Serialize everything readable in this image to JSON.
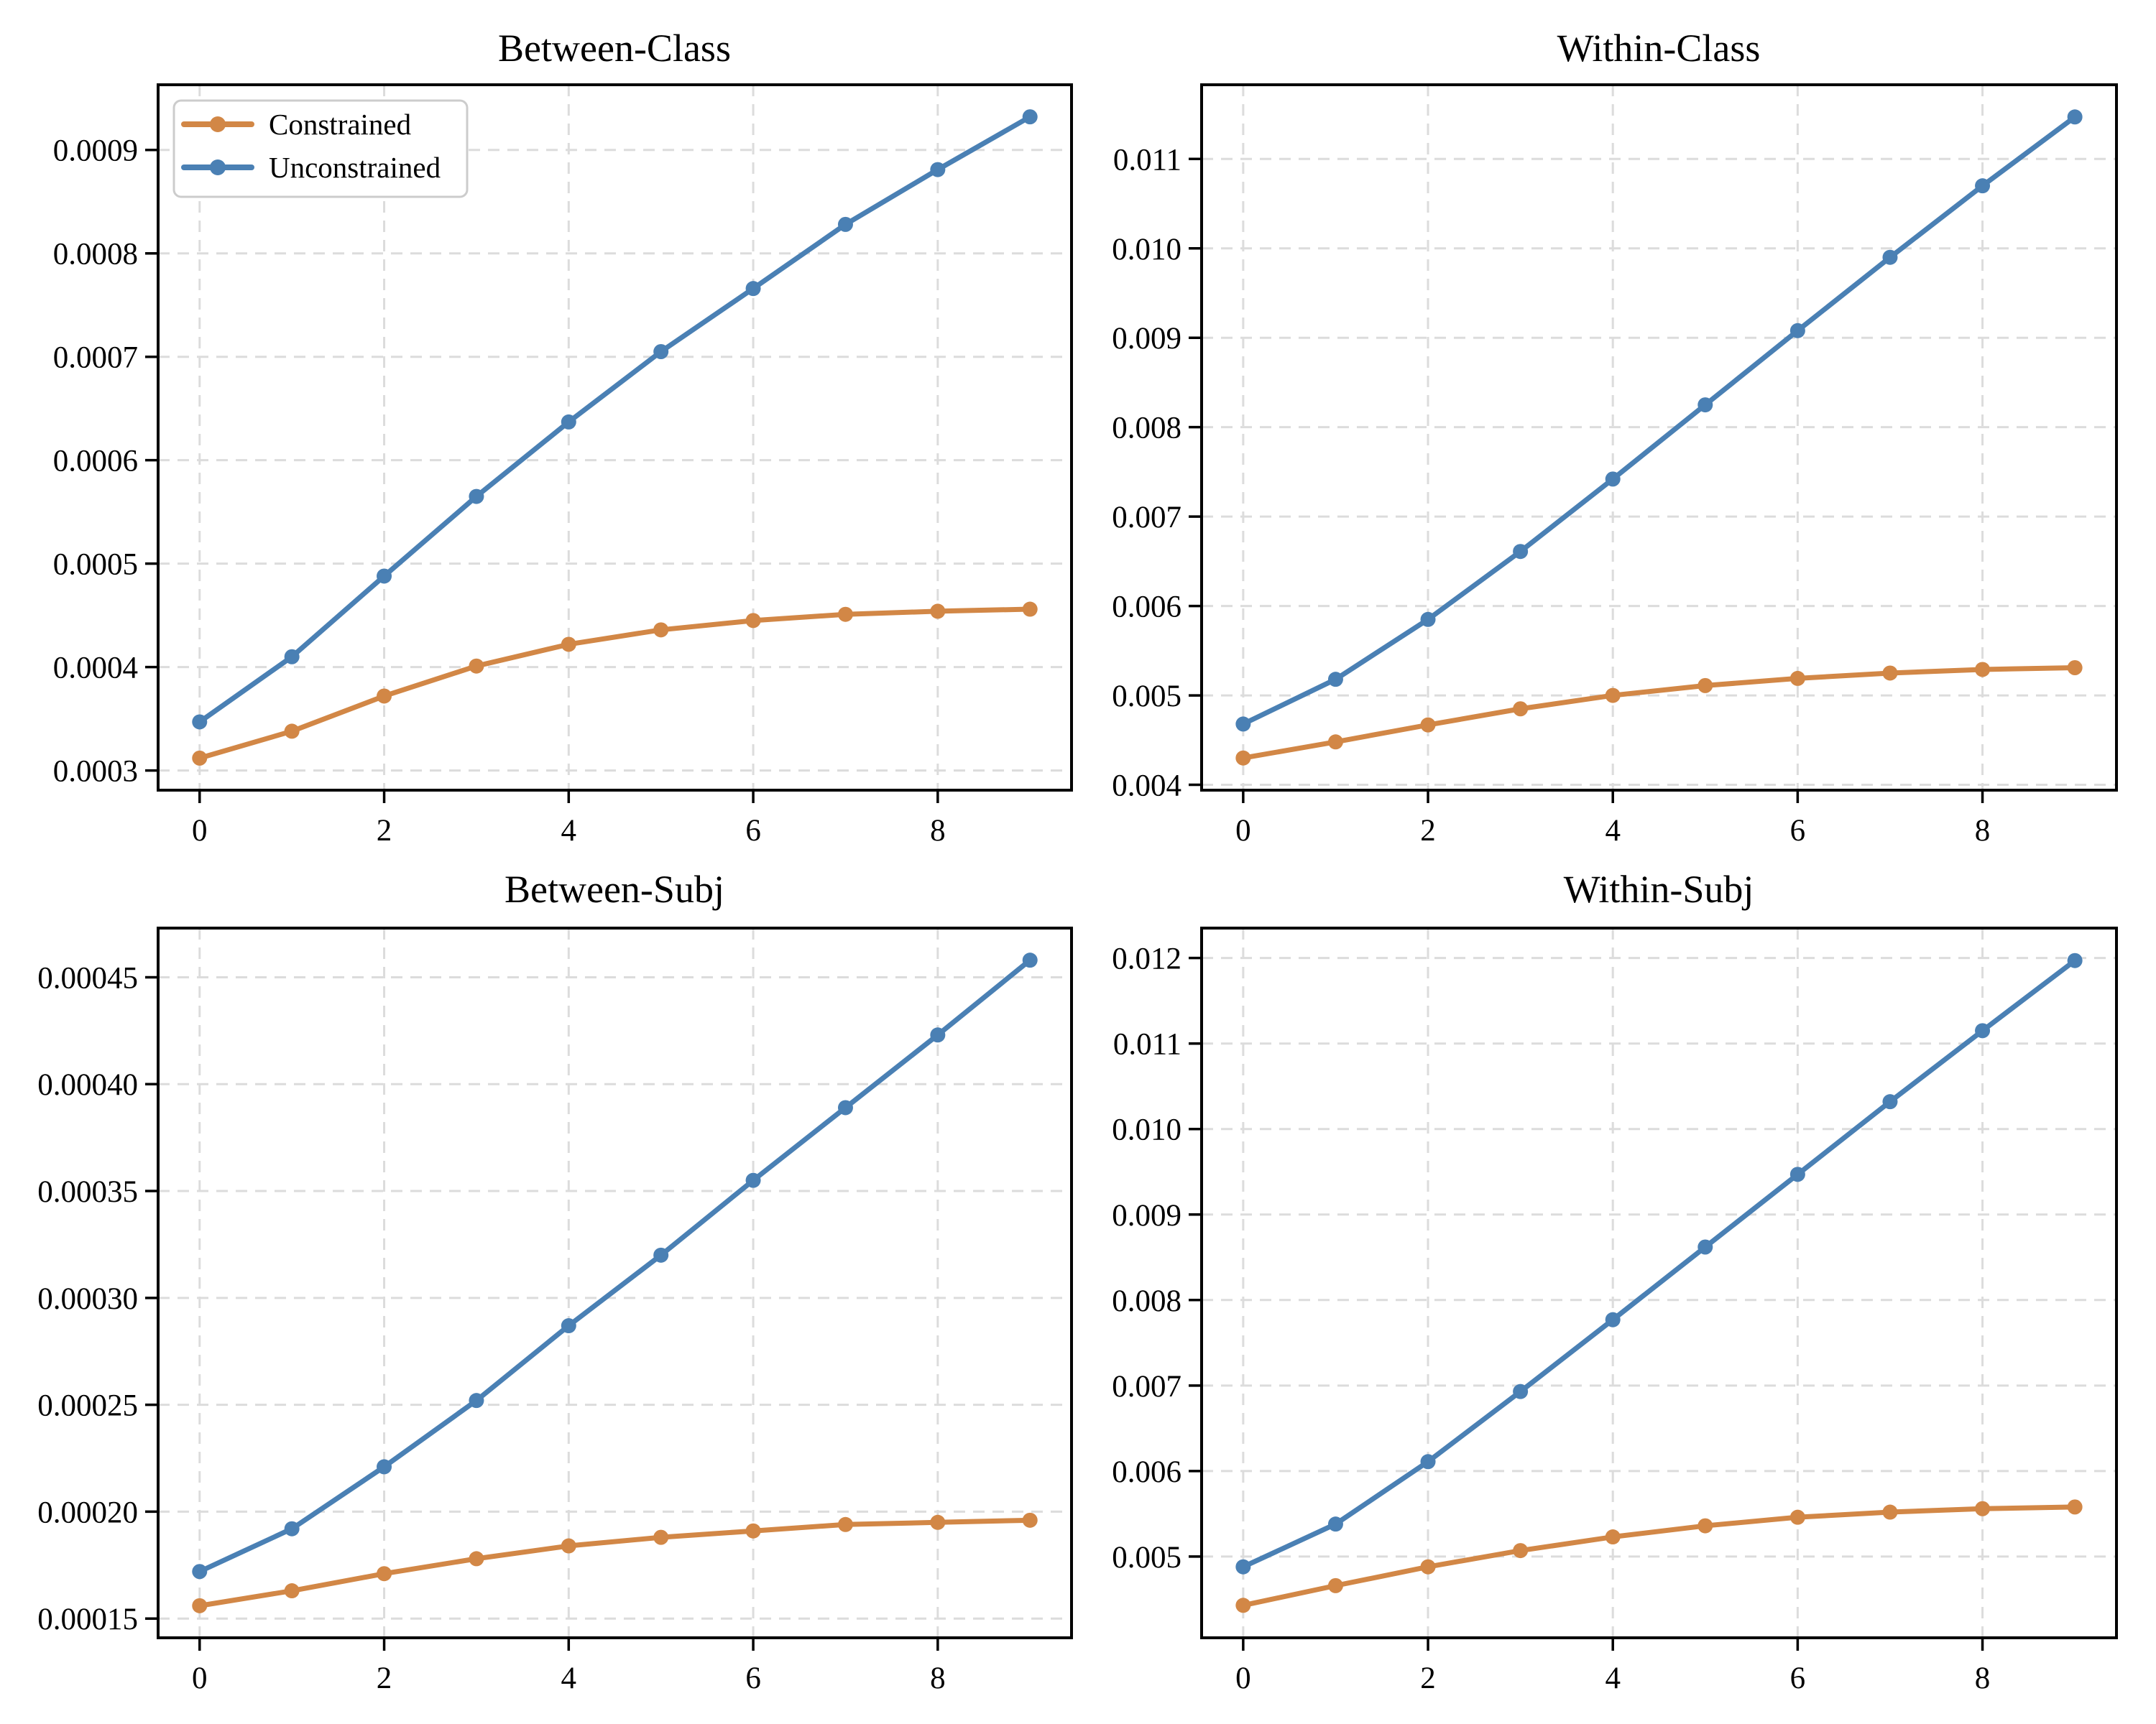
{
  "figure": {
    "background": "#ffffff",
    "spine_color": "#000000",
    "grid_color": "#dcdcdc",
    "legend_border_color": "#cccccc"
  },
  "palette": {
    "Constrained": "#D28746",
    "Unconstrained": "#4A80B4"
  },
  "legend": {
    "entries": [
      "Constrained",
      "Unconstrained"
    ]
  },
  "chart_data": [
    {
      "type": "line",
      "title": "Between-Class",
      "x": [
        0,
        1,
        2,
        3,
        4,
        5,
        6,
        7,
        8,
        9
      ],
      "xticks": [
        0,
        2,
        4,
        6,
        8
      ],
      "xtick_labels": [
        "0",
        "2",
        "4",
        "6",
        "8"
      ],
      "xlim": [
        -0.45,
        9.45
      ],
      "ytick_values": [
        0.0003,
        0.0004,
        0.0005,
        0.0006,
        0.0007,
        0.0008,
        0.0009
      ],
      "ytick_labels": [
        "0.0003",
        "0.0004",
        "0.0005",
        "0.0006",
        "0.0007",
        "0.0008",
        "0.0009"
      ],
      "ylim": [
        0.000281,
        0.000963
      ],
      "grid": true,
      "legend": true,
      "series": [
        {
          "name": "Constrained",
          "values": [
            0.000312,
            0.000338,
            0.000372,
            0.000401,
            0.000422,
            0.000436,
            0.000445,
            0.000451,
            0.000454,
            0.000456
          ]
        },
        {
          "name": "Unconstrained",
          "values": [
            0.000347,
            0.00041,
            0.000488,
            0.000565,
            0.000637,
            0.000705,
            0.000766,
            0.000828,
            0.000881,
            0.000932
          ]
        }
      ]
    },
    {
      "type": "line",
      "title": "Within-Class",
      "x": [
        0,
        1,
        2,
        3,
        4,
        5,
        6,
        7,
        8,
        9
      ],
      "xticks": [
        0,
        2,
        4,
        6,
        8
      ],
      "xtick_labels": [
        "0",
        "2",
        "4",
        "6",
        "8"
      ],
      "xlim": [
        -0.45,
        9.45
      ],
      "ytick_values": [
        0.004,
        0.005,
        0.006,
        0.007,
        0.008,
        0.009,
        0.01,
        0.011
      ],
      "ytick_labels": [
        "0.004",
        "0.005",
        "0.006",
        "0.007",
        "0.008",
        "0.009",
        "0.010",
        "0.011"
      ],
      "ylim": [
        0.00394,
        0.01183
      ],
      "grid": true,
      "legend": false,
      "series": [
        {
          "name": "Constrained",
          "values": [
            0.0043,
            0.00448,
            0.00467,
            0.00485,
            0.005,
            0.00511,
            0.00519,
            0.00525,
            0.00529,
            0.00531
          ]
        },
        {
          "name": "Unconstrained",
          "values": [
            0.00468,
            0.00518,
            0.00585,
            0.00661,
            0.00742,
            0.00825,
            0.00908,
            0.0099,
            0.0107,
            0.01147
          ]
        }
      ]
    },
    {
      "type": "line",
      "title": "Between-Subj",
      "x": [
        0,
        1,
        2,
        3,
        4,
        5,
        6,
        7,
        8,
        9
      ],
      "xticks": [
        0,
        2,
        4,
        6,
        8
      ],
      "xtick_labels": [
        "0",
        "2",
        "4",
        "6",
        "8"
      ],
      "xlim": [
        -0.45,
        9.45
      ],
      "ytick_values": [
        0.00015,
        0.0002,
        0.00025,
        0.0003,
        0.00035,
        0.0004,
        0.00045
      ],
      "ytick_labels": [
        "0.00015",
        "0.00020",
        "0.00025",
        "0.00030",
        "0.00035",
        "0.00040",
        "0.00045"
      ],
      "ylim": [
        0.000141,
        0.000473
      ],
      "grid": true,
      "legend": false,
      "series": [
        {
          "name": "Constrained",
          "values": [
            0.000156,
            0.000163,
            0.000171,
            0.000178,
            0.000184,
            0.000188,
            0.000191,
            0.000194,
            0.000195,
            0.000196
          ]
        },
        {
          "name": "Unconstrained",
          "values": [
            0.000172,
            0.000192,
            0.000221,
            0.000252,
            0.000287,
            0.00032,
            0.000355,
            0.000389,
            0.000423,
            0.000458
          ]
        }
      ]
    },
    {
      "type": "line",
      "title": "Within-Subj",
      "x": [
        0,
        1,
        2,
        3,
        4,
        5,
        6,
        7,
        8,
        9
      ],
      "xticks": [
        0,
        2,
        4,
        6,
        8
      ],
      "xtick_labels": [
        "0",
        "2",
        "4",
        "6",
        "8"
      ],
      "xlim": [
        -0.45,
        9.45
      ],
      "ytick_values": [
        0.005,
        0.006,
        0.007,
        0.008,
        0.009,
        0.01,
        0.011,
        0.012
      ],
      "ytick_labels": [
        "0.005",
        "0.006",
        "0.007",
        "0.008",
        "0.009",
        "0.010",
        "0.011",
        "0.012"
      ],
      "ylim": [
        0.00405,
        0.01235
      ],
      "grid": true,
      "legend": false,
      "series": [
        {
          "name": "Constrained",
          "values": [
            0.00443,
            0.00466,
            0.00488,
            0.00507,
            0.00523,
            0.00536,
            0.00546,
            0.00552,
            0.00556,
            0.00558
          ]
        },
        {
          "name": "Unconstrained",
          "values": [
            0.00488,
            0.00538,
            0.00611,
            0.00693,
            0.00777,
            0.00862,
            0.00947,
            0.01032,
            0.01115,
            0.01197
          ]
        }
      ]
    }
  ]
}
